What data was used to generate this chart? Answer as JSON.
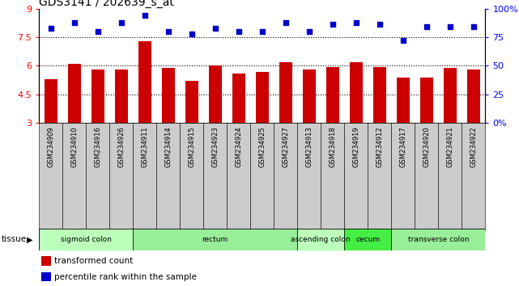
{
  "title": "GDS3141 / 202639_s_at",
  "samples": [
    "GSM234909",
    "GSM234910",
    "GSM234916",
    "GSM234926",
    "GSM234911",
    "GSM234914",
    "GSM234915",
    "GSM234923",
    "GSM234924",
    "GSM234925",
    "GSM234927",
    "GSM234913",
    "GSM234918",
    "GSM234919",
    "GSM234912",
    "GSM234917",
    "GSM234920",
    "GSM234921",
    "GSM234922"
  ],
  "bar_values": [
    5.3,
    6.1,
    5.8,
    5.8,
    7.3,
    5.9,
    5.2,
    6.0,
    5.6,
    5.7,
    6.2,
    5.8,
    5.95,
    6.2,
    5.95,
    5.4,
    5.4,
    5.9,
    5.8
  ],
  "dot_values": [
    83,
    88,
    80,
    88,
    94,
    80,
    78,
    83,
    80,
    80,
    88,
    80,
    86,
    88,
    86,
    72,
    84,
    84,
    84
  ],
  "bar_color": "#cc0000",
  "dot_color": "#0000cc",
  "ylim_left": [
    3,
    9
  ],
  "ylim_right": [
    0,
    100
  ],
  "yticks_left": [
    3,
    4.5,
    6,
    7.5,
    9
  ],
  "ytick_labels_right": [
    "0%",
    "25",
    "50",
    "75",
    "100%"
  ],
  "yticks_right": [
    0,
    25,
    50,
    75,
    100
  ],
  "hlines": [
    4.5,
    6.0,
    7.5
  ],
  "tissue_groups": [
    {
      "label": "sigmoid colon",
      "start": 0,
      "end": 4,
      "color": "#bbffbb"
    },
    {
      "label": "rectum",
      "start": 4,
      "end": 11,
      "color": "#99ee99"
    },
    {
      "label": "ascending colon",
      "start": 11,
      "end": 13,
      "color": "#bbffbb"
    },
    {
      "label": "cecum",
      "start": 13,
      "end": 15,
      "color": "#44ee44"
    },
    {
      "label": "transverse colon",
      "start": 15,
      "end": 19,
      "color": "#99ee99"
    }
  ],
  "legend_items": [
    {
      "label": "transformed count",
      "color": "#cc0000"
    },
    {
      "label": "percentile rank within the sample",
      "color": "#0000cc"
    }
  ],
  "sample_box_color": "#cccccc",
  "tissue_label": "tissue"
}
